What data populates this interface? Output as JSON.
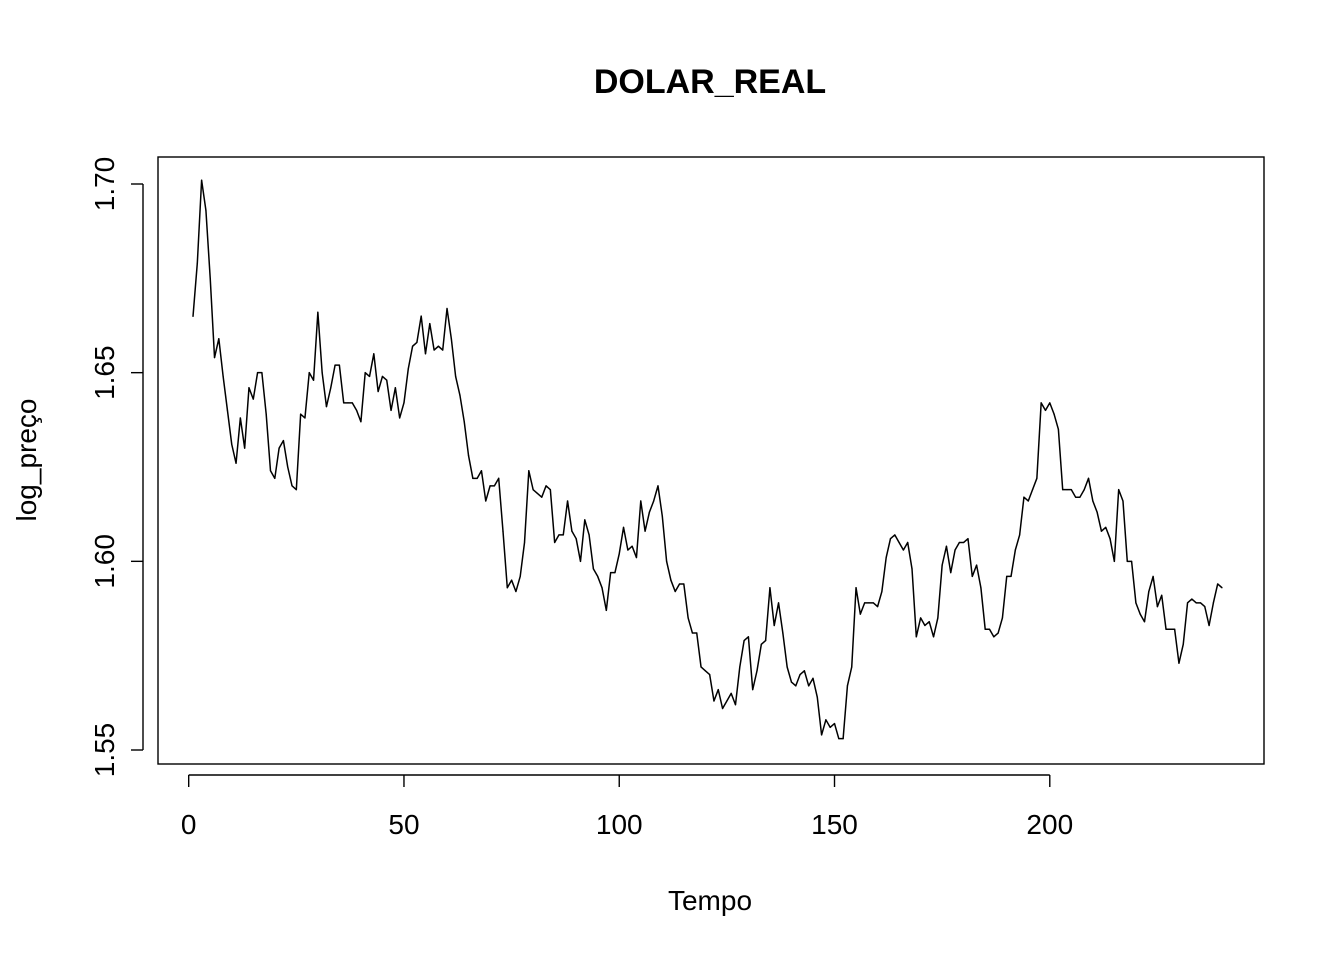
{
  "chart_data": {
    "type": "line",
    "title": "DOLAR_REAL",
    "xlabel": "Tempo",
    "ylabel": "log_preço",
    "xlim": [
      1,
      240
    ],
    "ylim": [
      1.553,
      1.701
    ],
    "x_ticks": [
      0,
      50,
      100,
      150,
      200
    ],
    "y_ticks": [
      1.55,
      1.6,
      1.65,
      1.7
    ],
    "x_tick_labels": [
      "0",
      "50",
      "100",
      "150",
      "200"
    ],
    "y_tick_labels": [
      "1.55",
      "1.60",
      "1.65",
      "1.70"
    ],
    "grid": false,
    "series": [
      {
        "values": [
          1.6649,
          1.679,
          1.701,
          1.693,
          1.675,
          1.654,
          1.659,
          1.649,
          1.64,
          1.631,
          1.626,
          1.638,
          1.63,
          1.646,
          1.643,
          1.65,
          1.65,
          1.639,
          1.624,
          1.622,
          1.63,
          1.632,
          1.625,
          1.62,
          1.619,
          1.639,
          1.638,
          1.65,
          1.648,
          1.666,
          1.65,
          1.641,
          1.646,
          1.652,
          1.652,
          1.642,
          1.642,
          1.642,
          1.64,
          1.637,
          1.65,
          1.649,
          1.655,
          1.645,
          1.649,
          1.648,
          1.64,
          1.646,
          1.638,
          1.642,
          1.651,
          1.657,
          1.658,
          1.665,
          1.655,
          1.663,
          1.656,
          1.657,
          1.656,
          1.667,
          1.659,
          1.649,
          1.644,
          1.637,
          1.628,
          1.622,
          1.622,
          1.624,
          1.616,
          1.62,
          1.62,
          1.622,
          1.608,
          1.593,
          1.595,
          1.592,
          1.596,
          1.605,
          1.624,
          1.619,
          1.618,
          1.617,
          1.62,
          1.619,
          1.605,
          1.607,
          1.607,
          1.616,
          1.608,
          1.606,
          1.6,
          1.611,
          1.607,
          1.598,
          1.596,
          1.593,
          1.587,
          1.597,
          1.597,
          1.602,
          1.609,
          1.603,
          1.604,
          1.601,
          1.616,
          1.608,
          1.613,
          1.616,
          1.62,
          1.612,
          1.6,
          1.595,
          1.592,
          1.594,
          1.594,
          1.585,
          1.581,
          1.581,
          1.572,
          1.571,
          1.57,
          1.563,
          1.566,
          1.561,
          1.563,
          1.565,
          1.562,
          1.572,
          1.579,
          1.58,
          1.566,
          1.571,
          1.578,
          1.579,
          1.593,
          1.583,
          1.589,
          1.581,
          1.572,
          1.568,
          1.567,
          1.57,
          1.571,
          1.567,
          1.569,
          1.564,
          1.554,
          1.558,
          1.556,
          1.557,
          1.553,
          1.553,
          1.567,
          1.572,
          1.593,
          1.586,
          1.589,
          1.589,
          1.589,
          1.588,
          1.592,
          1.601,
          1.606,
          1.607,
          1.605,
          1.603,
          1.605,
          1.598,
          1.58,
          1.585,
          1.583,
          1.584,
          1.58,
          1.585,
          1.599,
          1.604,
          1.597,
          1.603,
          1.605,
          1.605,
          1.606,
          1.596,
          1.599,
          1.593,
          1.582,
          1.582,
          1.58,
          1.581,
          1.585,
          1.596,
          1.596,
          1.603,
          1.607,
          1.617,
          1.616,
          1.619,
          1.622,
          1.642,
          1.64,
          1.642,
          1.639,
          1.635,
          1.619,
          1.619,
          1.619,
          1.617,
          1.617,
          1.619,
          1.622,
          1.616,
          1.613,
          1.608,
          1.609,
          1.606,
          1.6,
          1.619,
          1.616,
          1.6,
          1.6,
          1.589,
          1.586,
          1.584,
          1.592,
          1.596,
          1.588,
          1.591,
          1.582,
          1.582,
          1.582,
          1.573,
          1.578,
          1.589,
          1.59,
          1.589,
          1.589,
          1.588,
          1.583,
          1.589,
          1.594,
          1.593
        ],
        "color": "#000000"
      }
    ]
  }
}
